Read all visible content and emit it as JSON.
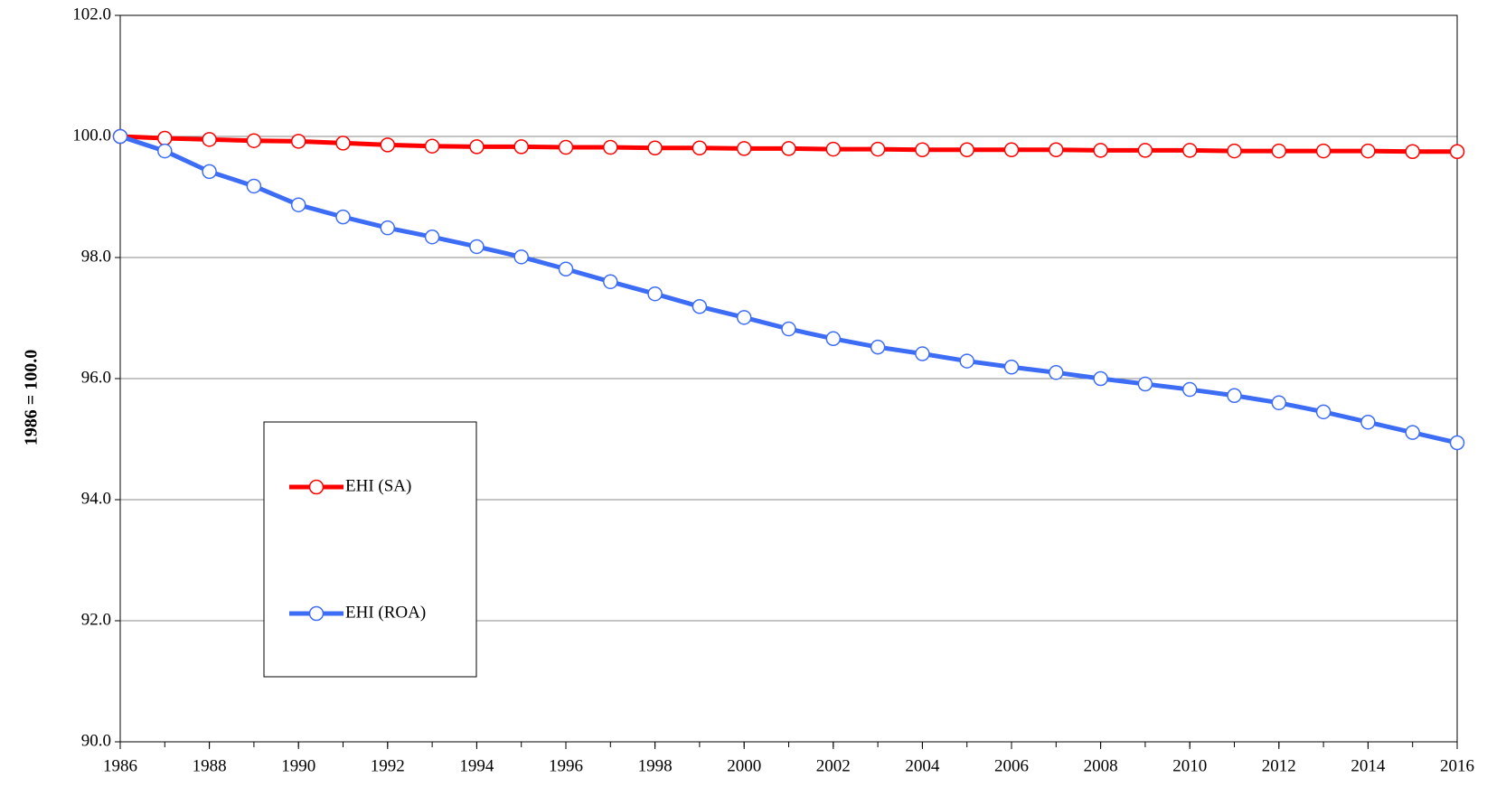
{
  "chart_data": {
    "type": "line",
    "y_label": "1986 = 100.0",
    "x": [
      1986,
      1987,
      1988,
      1989,
      1990,
      1991,
      1992,
      1993,
      1994,
      1995,
      1996,
      1997,
      1998,
      1999,
      2000,
      2001,
      2002,
      2003,
      2004,
      2005,
      2006,
      2007,
      2008,
      2009,
      2010,
      2011,
      2012,
      2013,
      2014,
      2015,
      2016
    ],
    "series": [
      {
        "name": "EHI (SA)",
        "color": "#ff0000",
        "values": [
          100.0,
          99.97,
          99.95,
          99.93,
          99.92,
          99.89,
          99.86,
          99.84,
          99.83,
          99.83,
          99.82,
          99.82,
          99.81,
          99.81,
          99.8,
          99.8,
          99.79,
          99.79,
          99.78,
          99.78,
          99.78,
          99.78,
          99.77,
          99.77,
          99.77,
          99.76,
          99.76,
          99.76,
          99.76,
          99.75,
          99.75
        ]
      },
      {
        "name": "EHI (ROA)",
        "color": "#3d6df5",
        "values": [
          100.0,
          99.76,
          99.42,
          99.18,
          98.87,
          98.67,
          98.49,
          98.34,
          98.18,
          98.01,
          97.81,
          97.6,
          97.4,
          97.19,
          97.01,
          96.82,
          96.66,
          96.52,
          96.41,
          96.29,
          96.19,
          96.1,
          96.0,
          95.91,
          95.82,
          95.72,
          95.6,
          95.45,
          95.28,
          95.11,
          94.94
        ]
      }
    ],
    "xlim": [
      1986,
      2016
    ],
    "xticks": [
      1986,
      1988,
      1990,
      1992,
      1994,
      1996,
      1998,
      2000,
      2002,
      2004,
      2006,
      2008,
      2010,
      2012,
      2014,
      2016
    ],
    "ylim": [
      90,
      102
    ],
    "yticks": [
      {
        "value": 90,
        "label": "90.0"
      },
      {
        "value": 92,
        "label": "92.0"
      },
      {
        "value": 94,
        "label": "94.0"
      },
      {
        "value": 96,
        "label": "96.0"
      },
      {
        "value": 98,
        "label": "98.0"
      },
      {
        "value": 100,
        "label": "100.0"
      },
      {
        "value": 102,
        "label": "102.0"
      }
    ],
    "grid": true
  }
}
